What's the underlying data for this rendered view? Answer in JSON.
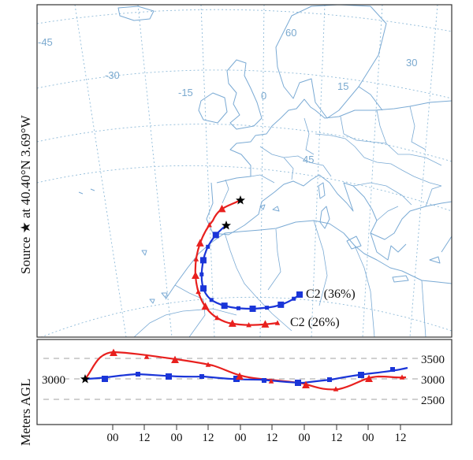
{
  "source_label": "Source ★ at 40.40°N 3.69°W",
  "height_axis_title": "Meters AGL",
  "source_height_label": "3000",
  "height_levels": [
    "3500",
    "3000",
    "2500"
  ],
  "time_ticks": [
    "00",
    "12",
    "00",
    "12",
    "00",
    "12",
    "00",
    "12",
    "00",
    "12"
  ],
  "graticule_labels": [
    {
      "text": "-45"
    },
    {
      "text": "-30"
    },
    {
      "text": "-15"
    },
    {
      "text": "0"
    },
    {
      "text": "15"
    },
    {
      "text": "30"
    },
    {
      "text": "45"
    },
    {
      "text": "60"
    }
  ],
  "trajectories": [
    {
      "label": "C2 (36%)",
      "color": "#1a35d8",
      "marker": "square"
    },
    {
      "label": "C2 (26%)",
      "color": "#e8201e",
      "marker": "triangle"
    }
  ],
  "colors": {
    "map_lines": "#7aaad4",
    "grid_lines": "#8fbbd9",
    "blue": "#1a35d8",
    "red": "#e8201e"
  }
}
